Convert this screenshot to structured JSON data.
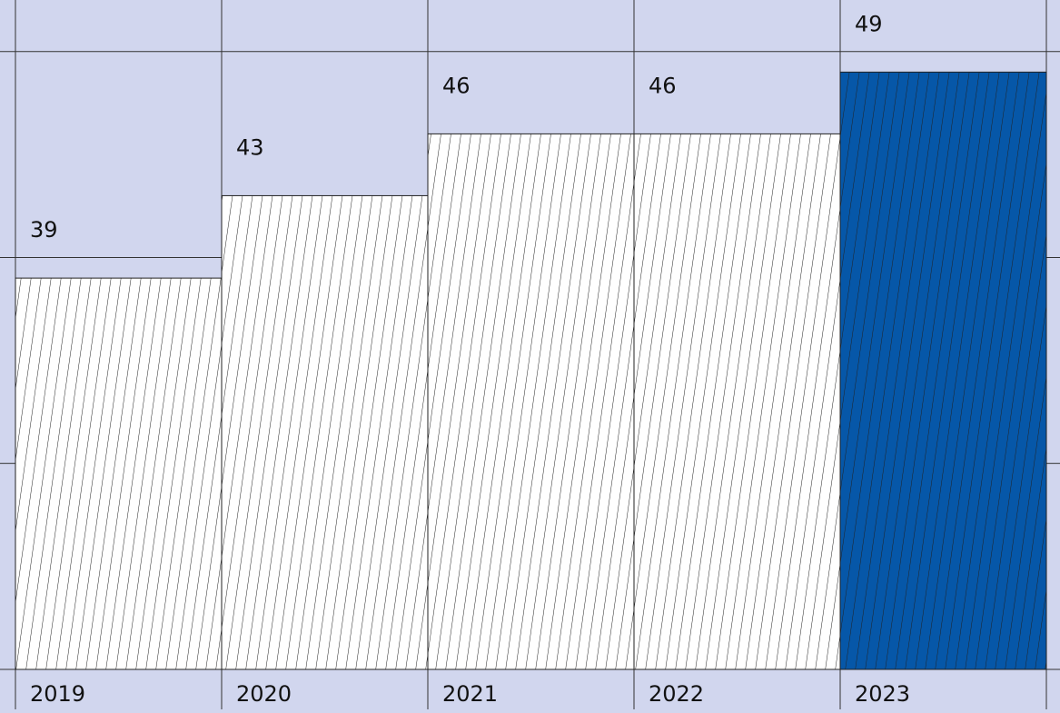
{
  "chart_data": {
    "type": "bar",
    "categories": [
      "2019",
      "2020",
      "2021",
      "2022",
      "2023"
    ],
    "values": [
      39,
      43,
      46,
      46,
      49
    ],
    "colors": [
      "#ffffff",
      "#ffffff",
      "#ffffff",
      "#ffffff",
      "#0657a8"
    ],
    "ylim": [
      20,
      52.5
    ],
    "yticks": [
      20,
      30,
      40,
      50
    ],
    "grid": true
  }
}
